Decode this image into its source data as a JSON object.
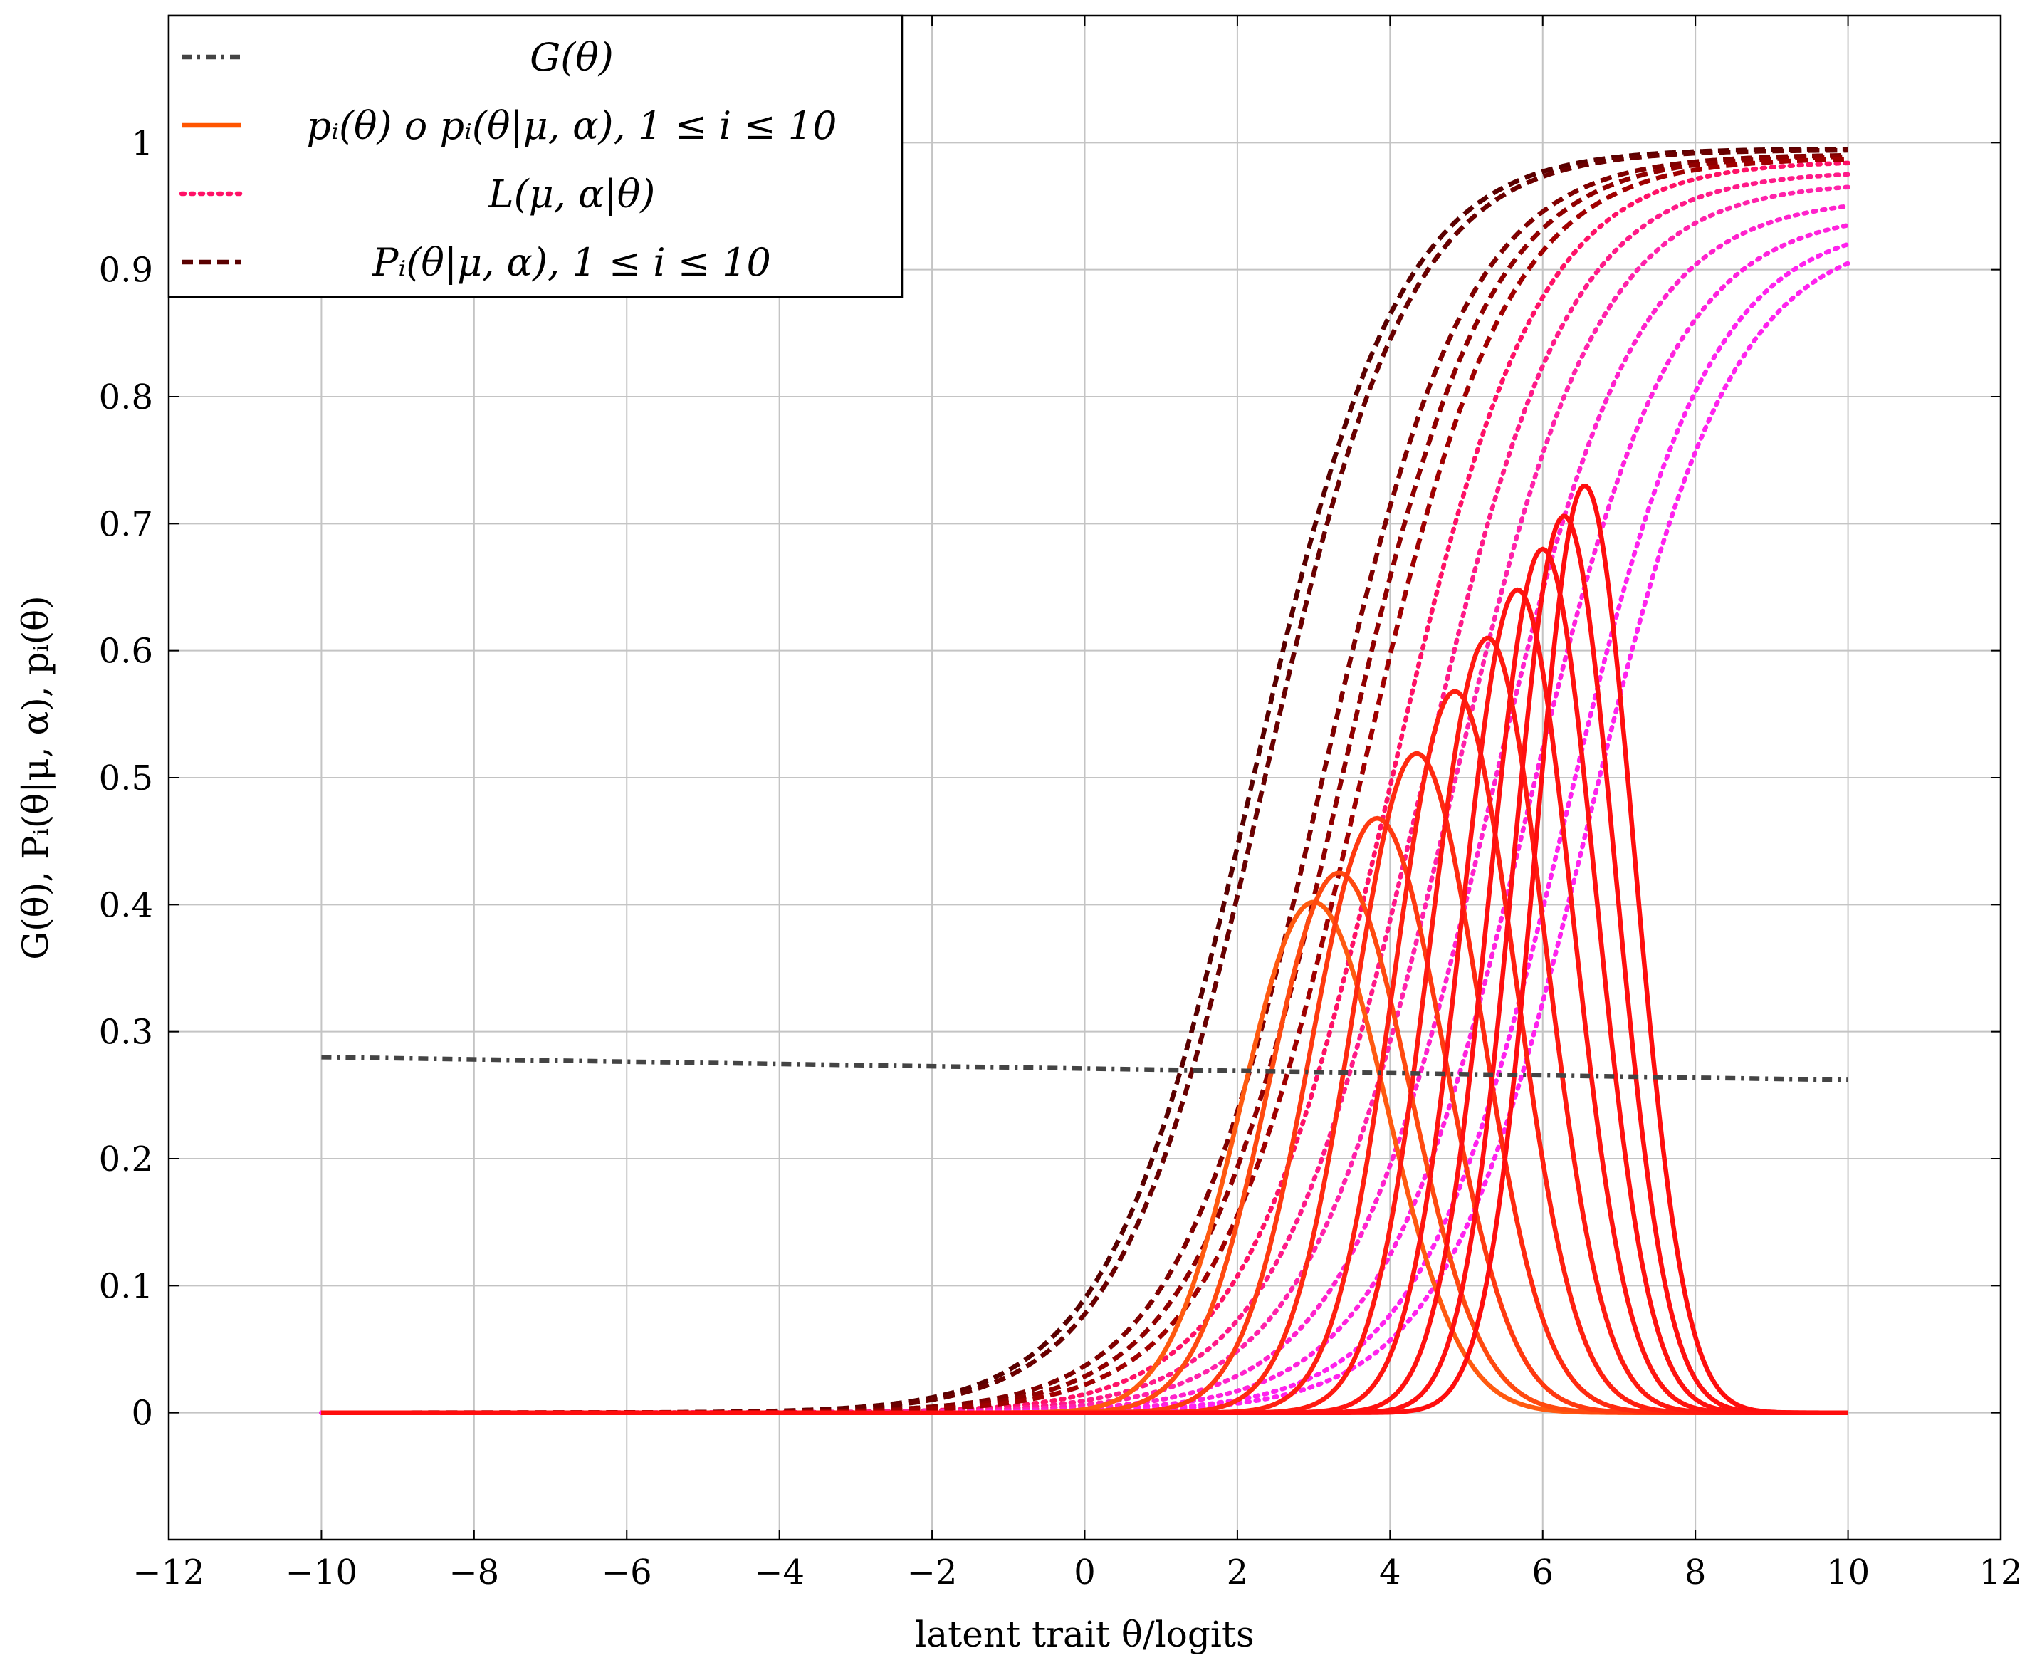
{
  "chart_data": {
    "type": "line",
    "title": "",
    "xlabel": "latent trait θ/logits",
    "ylabel": "G(θ), Pᵢ(θ|μ, α), pᵢ(θ)",
    "xlim": [
      -12,
      12
    ],
    "ylim": [
      -0.1,
      1.1
    ],
    "xticks": [
      -12,
      -10,
      -8,
      -6,
      -4,
      -2,
      0,
      2,
      4,
      6,
      8,
      10,
      12
    ],
    "xtick_labels": [
      "−12",
      "−10",
      "−8",
      "−6",
      "−4",
      "−2",
      "0",
      "2",
      "4",
      "6",
      "8",
      "10",
      "12"
    ],
    "yticks": [
      0,
      0.1,
      0.2,
      0.3,
      0.4,
      0.5,
      0.6,
      0.7,
      0.8,
      0.9,
      1
    ],
    "ytick_labels": [
      "0",
      "0.1",
      "0.2",
      "0.3",
      "0.4",
      "0.5",
      "0.6",
      "0.7",
      "0.8",
      "0.9",
      "1"
    ],
    "grid": true,
    "legend_position": "top-left",
    "legend": [
      {
        "label": "G(θ)",
        "style": "dash-dot",
        "color": "#444444"
      },
      {
        "label": "pᵢ(θ) o pᵢ(θ|μ, α), 1 ≤ i ≤ 10",
        "style": "solid",
        "color": "#FF5500"
      },
      {
        "label": "L(μ, α|θ)",
        "style": "dotted",
        "color": "#FF1166"
      },
      {
        "label": "Pᵢ(θ|μ, α), 1 ≤ i ≤ 10",
        "style": "dashed",
        "color": "#5A0000"
      }
    ],
    "series": [
      {
        "name": "G(θ)",
        "kind": "linear",
        "color": "#444444",
        "x": [
          -10,
          10
        ],
        "y": [
          0.28,
          0.262
        ]
      },
      {
        "name": "p1",
        "kind": "peak",
        "color": "#FF5A10",
        "peak_x": 3.0,
        "peak_y": 0.402
      },
      {
        "name": "p2",
        "kind": "peak",
        "color": "#FF4A10",
        "peak_x": 3.33,
        "peak_y": 0.425
      },
      {
        "name": "p3",
        "kind": "peak",
        "color": "#FF3A10",
        "peak_x": 3.83,
        "peak_y": 0.468
      },
      {
        "name": "p4",
        "kind": "peak",
        "color": "#FF2A10",
        "peak_x": 4.35,
        "peak_y": 0.519
      },
      {
        "name": "p5",
        "kind": "peak",
        "color": "#FF2010",
        "peak_x": 4.85,
        "peak_y": 0.568
      },
      {
        "name": "p6",
        "kind": "peak",
        "color": "#FF1A10",
        "peak_x": 5.28,
        "peak_y": 0.61
      },
      {
        "name": "p7",
        "kind": "peak",
        "color": "#FF1510",
        "peak_x": 5.67,
        "peak_y": 0.648
      },
      {
        "name": "p8",
        "kind": "peak",
        "color": "#FF1210",
        "peak_x": 6.0,
        "peak_y": 0.68
      },
      {
        "name": "p9",
        "kind": "peak",
        "color": "#FF1010",
        "peak_x": 6.28,
        "peak_y": 0.706
      },
      {
        "name": "p10",
        "kind": "peak",
        "color": "#FF0E0E",
        "peak_x": 6.55,
        "peak_y": 0.73
      },
      {
        "name": "P1",
        "kind": "logistic",
        "color": "#5A0000",
        "mid_x": 2.2,
        "at_x10": 0.995
      },
      {
        "name": "P2",
        "kind": "logistic",
        "color": "#6A0000",
        "mid_x": 2.35,
        "at_x10": 0.994
      },
      {
        "name": "P3",
        "kind": "logistic",
        "color": "#800000",
        "mid_x": 3.1,
        "at_x10": 0.99
      },
      {
        "name": "P4",
        "kind": "logistic",
        "color": "#900000",
        "mid_x": 3.35,
        "at_x10": 0.989
      },
      {
        "name": "P5",
        "kind": "logistic",
        "color": "#A00000",
        "mid_x": 3.6,
        "at_x10": 0.987
      },
      {
        "name": "L1",
        "kind": "logistic",
        "color": "#FF1166",
        "mid_x": 4.0,
        "at_x10": 0.984
      },
      {
        "name": "L2",
        "kind": "logistic",
        "color": "#FF1A88",
        "mid_x": 4.4,
        "at_x10": 0.975
      },
      {
        "name": "L3",
        "kind": "logistic",
        "color": "#FF22AA",
        "mid_x": 4.8,
        "at_x10": 0.965
      },
      {
        "name": "L4",
        "kind": "logistic",
        "color": "#FF22CC",
        "mid_x": 5.3,
        "at_x10": 0.95
      },
      {
        "name": "L5",
        "kind": "logistic",
        "color": "#FF22DD",
        "mid_x": 5.8,
        "at_x10": 0.935
      },
      {
        "name": "L6",
        "kind": "logistic",
        "color": "#FF22EE",
        "mid_x": 6.3,
        "at_x10": 0.92
      },
      {
        "name": "L7",
        "kind": "logistic",
        "color": "#FF22EE",
        "mid_x": 6.6,
        "at_x10": 0.905
      }
    ]
  }
}
